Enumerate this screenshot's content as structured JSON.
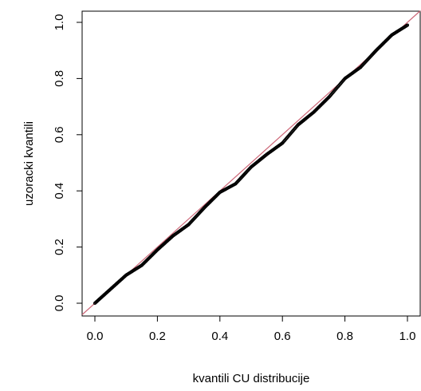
{
  "chart_data": {
    "type": "scatter",
    "title": "",
    "xlabel": "kvantili CU distribucije",
    "ylabel": "uzoracki kvantili",
    "xlim": [
      0.0,
      1.0
    ],
    "ylim": [
      0.0,
      1.0
    ],
    "x_ticks": [
      "0.0",
      "0.2",
      "0.4",
      "0.6",
      "0.8",
      "1.0"
    ],
    "y_ticks": [
      "0.0",
      "0.2",
      "0.4",
      "0.6",
      "0.8",
      "1.0"
    ],
    "grid": false,
    "legend": "none",
    "reference_line": {
      "from": [
        0,
        0
      ],
      "to": [
        1,
        1
      ],
      "color": "#cc6677"
    },
    "point_color": "#000000",
    "series": [
      {
        "x": [
          0.0,
          0.05,
          0.1,
          0.15,
          0.2,
          0.25,
          0.3,
          0.35,
          0.4,
          0.45,
          0.5,
          0.55,
          0.6,
          0.65,
          0.7,
          0.75,
          0.8,
          0.85,
          0.9,
          0.95,
          1.0
        ],
        "y": [
          0.0,
          0.05,
          0.1,
          0.135,
          0.19,
          0.24,
          0.28,
          0.34,
          0.395,
          0.425,
          0.485,
          0.53,
          0.57,
          0.635,
          0.68,
          0.735,
          0.8,
          0.84,
          0.9,
          0.955,
          0.99
        ]
      }
    ]
  }
}
